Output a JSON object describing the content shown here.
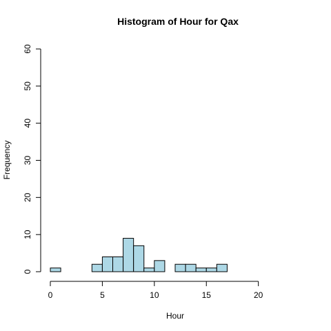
{
  "chart_data": {
    "type": "bar",
    "title": "Histogram of Hour for Qax",
    "xlabel": "Hour",
    "ylabel": "Frequency",
    "xlim": [
      0,
      24
    ],
    "ylim": [
      0,
      60
    ],
    "x_ticks": [
      0,
      5,
      10,
      15,
      20
    ],
    "y_ticks": [
      0,
      10,
      20,
      30,
      40,
      50,
      60
    ],
    "bin_width": 1,
    "bins": [
      {
        "start": 0,
        "end": 1,
        "count": 1
      },
      {
        "start": 1,
        "end": 2,
        "count": 0
      },
      {
        "start": 2,
        "end": 3,
        "count": 0
      },
      {
        "start": 3,
        "end": 4,
        "count": 0
      },
      {
        "start": 4,
        "end": 5,
        "count": 2
      },
      {
        "start": 5,
        "end": 6,
        "count": 4
      },
      {
        "start": 6,
        "end": 7,
        "count": 4
      },
      {
        "start": 7,
        "end": 8,
        "count": 9
      },
      {
        "start": 8,
        "end": 9,
        "count": 7
      },
      {
        "start": 9,
        "end": 10,
        "count": 1
      },
      {
        "start": 10,
        "end": 11,
        "count": 3
      },
      {
        "start": 11,
        "end": 12,
        "count": 0
      },
      {
        "start": 12,
        "end": 13,
        "count": 2
      },
      {
        "start": 13,
        "end": 14,
        "count": 2
      },
      {
        "start": 14,
        "end": 15,
        "count": 1
      },
      {
        "start": 15,
        "end": 16,
        "count": 1
      },
      {
        "start": 16,
        "end": 17,
        "count": 2
      },
      {
        "start": 17,
        "end": 18,
        "count": 0
      },
      {
        "start": 18,
        "end": 19,
        "count": 0
      },
      {
        "start": 19,
        "end": 20,
        "count": 0
      },
      {
        "start": 20,
        "end": 21,
        "count": 0
      },
      {
        "start": 21,
        "end": 22,
        "count": 0
      },
      {
        "start": 22,
        "end": 23,
        "count": 0
      },
      {
        "start": 23,
        "end": 24,
        "count": 0
      }
    ],
    "bar_color": "#ADD8E6",
    "border_color": "#000000",
    "grid": false
  }
}
